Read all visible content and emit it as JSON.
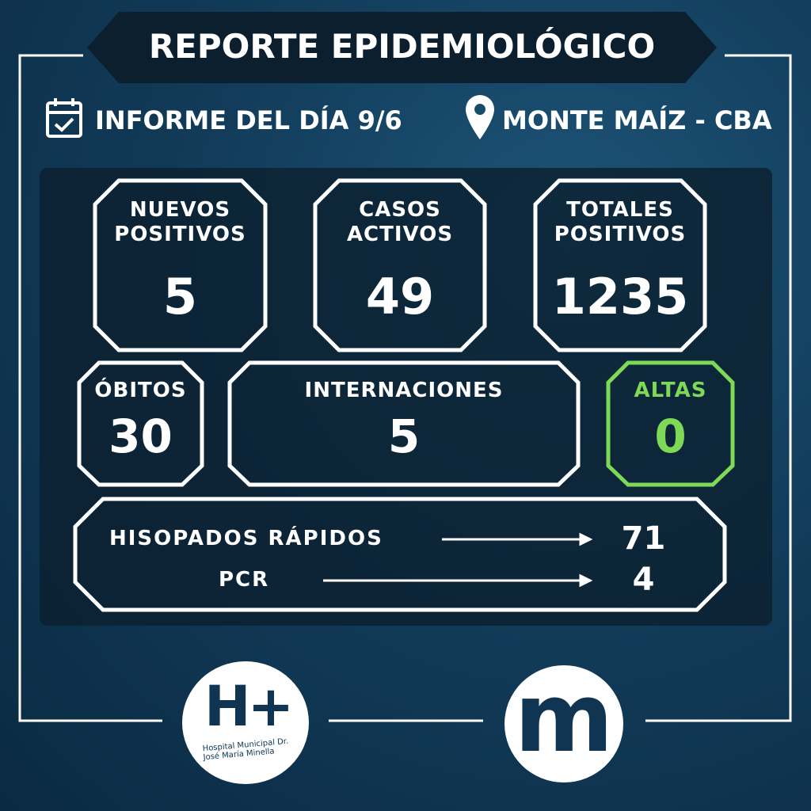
{
  "title": "REPORTE EPIDEMIOLÓGICO",
  "header": {
    "date_label": "INFORME DEL DÍA 9/6",
    "date_icon": "calendar-check-icon",
    "location_label": "MONTE MAÍZ - CBA",
    "location_icon": "map-pin-icon"
  },
  "stats": {
    "nuevos": {
      "label1": "NUEVOS",
      "label2": "POSITIVOS",
      "value": "5"
    },
    "activos": {
      "label1": "CASOS",
      "label2": "ACTIVOS",
      "value": "49"
    },
    "totales": {
      "label1": "TOTALES",
      "label2": "POSITIVOS",
      "value": "1235"
    },
    "obitos": {
      "label": "ÓBITOS",
      "value": "30"
    },
    "internaciones": {
      "label": "INTERNACIONES",
      "value": "5"
    },
    "altas": {
      "label": "ALTAS",
      "value": "0"
    }
  },
  "tests": {
    "rapidos_label": "HISOPADOS RÁPIDOS",
    "rapidos_value": "71",
    "pcr_label": "PCR",
    "pcr_value": "4"
  },
  "logos": {
    "hospital_mark": "H+",
    "hospital_name": "Hospital Municipal Dr. José María Minella",
    "municipio_mark": "m"
  },
  "colors": {
    "background": "#123c5a",
    "accent_green": "#7ed957",
    "panel": "#0b1f2e"
  }
}
